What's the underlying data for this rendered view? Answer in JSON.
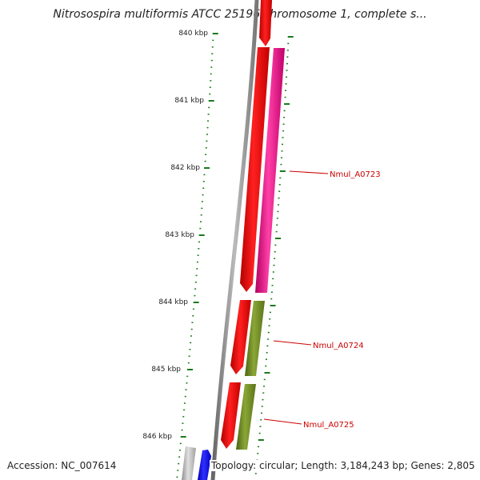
{
  "title": "Nitrosospira multiformis ATCC 25196 chromosome 1, complete s...",
  "scale_labels": [
    "840 kbp",
    "841 kbp",
    "842 kbp",
    "843 kbp",
    "844 kbp",
    "845 kbp",
    "846 kbp"
  ],
  "genes": [
    {
      "label": "Nmul_A0723",
      "color": "#e0007a"
    },
    {
      "label": "Nmul_A0724",
      "color": "#6e8a1e"
    },
    {
      "label": "Nmul_A0725",
      "color": "#6e8a1e"
    }
  ],
  "colors": {
    "scale": "#1a7a1a",
    "cds": "#ff0000",
    "backbone": "#888888",
    "label_line": "#cc0000",
    "reverse_gene": "#0000ff",
    "gray_gene": "#c0c0c0"
  },
  "footer": {
    "accession": "Accession: NC_007614",
    "summary": "Topology: circular; Length: 3,184,243 bp; Genes: 2,805"
  }
}
